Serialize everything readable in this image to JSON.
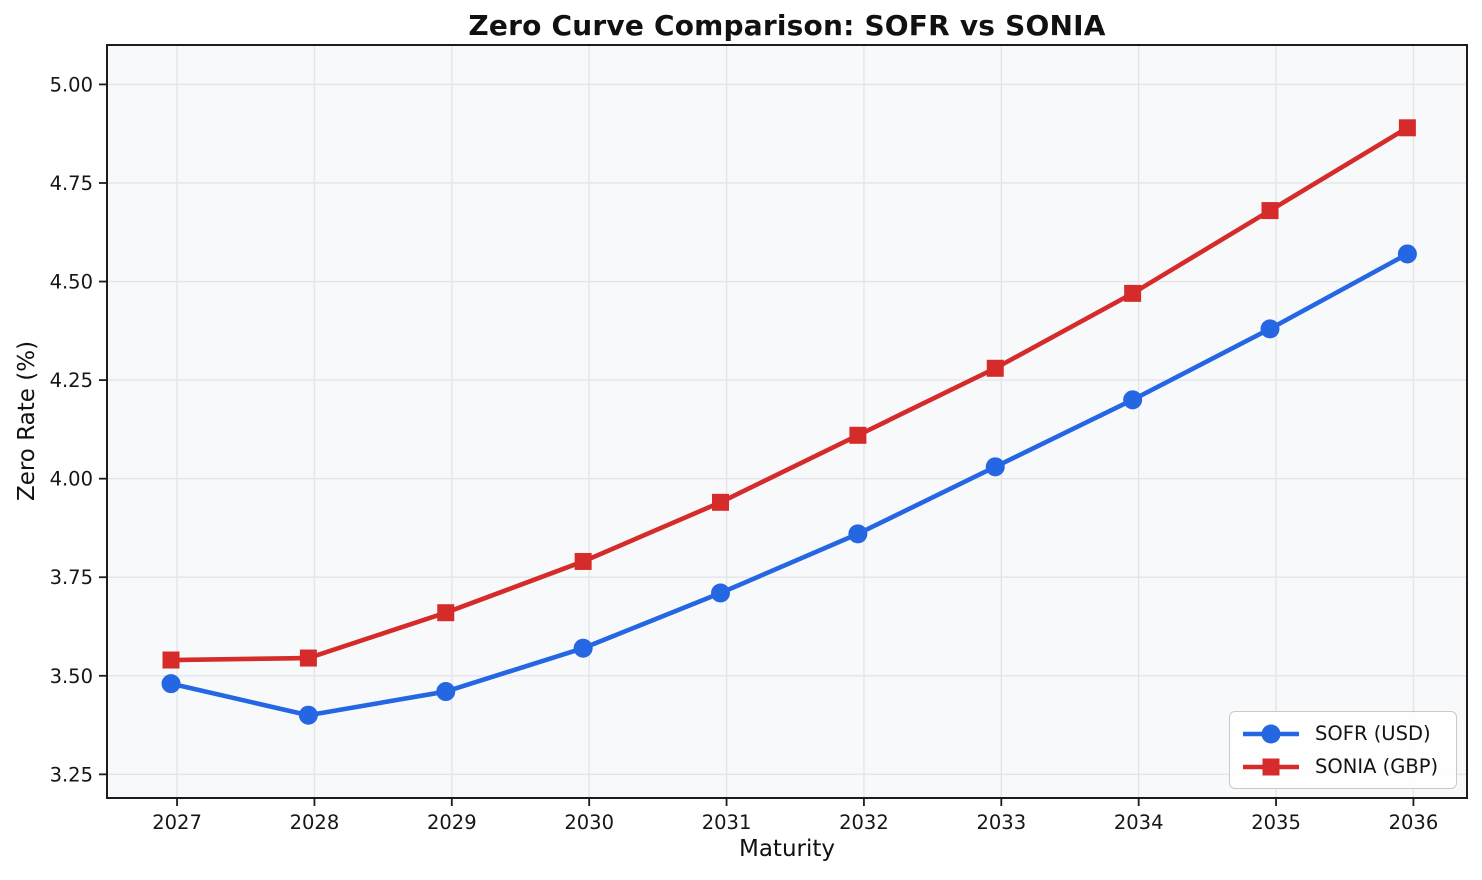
{
  "figure": {
    "background": "#ffffff",
    "plot_background": "#f8f9fb",
    "grid_color": "#e3e5e9",
    "spine_color": "#1c1c1c",
    "text_color": "#161616",
    "legend_border_color": "#c9c9c9"
  },
  "chart_data": {
    "type": "line",
    "title": "Zero Curve Comparison: SOFR vs SONIA",
    "xlabel": "Maturity",
    "ylabel": "Zero Rate (%)",
    "x": [
      2027,
      2028,
      2029,
      2030,
      2031,
      2032,
      2033,
      2034,
      2035,
      2036
    ],
    "series": [
      {
        "name": "SOFR (USD)",
        "color": "#2566e3",
        "marker": "circle",
        "values": [
          3.48,
          3.4,
          3.46,
          3.57,
          3.71,
          3.86,
          4.03,
          4.2,
          4.38,
          4.57
        ]
      },
      {
        "name": "SONIA (GBP)",
        "color": "#d62b2b",
        "marker": "square",
        "values": [
          3.54,
          3.545,
          3.66,
          3.79,
          3.94,
          4.11,
          4.28,
          4.47,
          4.68,
          4.89
        ]
      }
    ],
    "xticks": [
      2027,
      2028,
      2029,
      2030,
      2031,
      2032,
      2033,
      2034,
      2035,
      2036
    ],
    "yticks": [
      3.25,
      3.5,
      3.75,
      4.0,
      4.25,
      4.5,
      4.75,
      5.0
    ],
    "xlim": [
      2026.49,
      2036.39
    ],
    "ylim": [
      3.19,
      5.1
    ],
    "x_offset_years": -0.044,
    "grid": true,
    "legend_position": "lower right"
  }
}
